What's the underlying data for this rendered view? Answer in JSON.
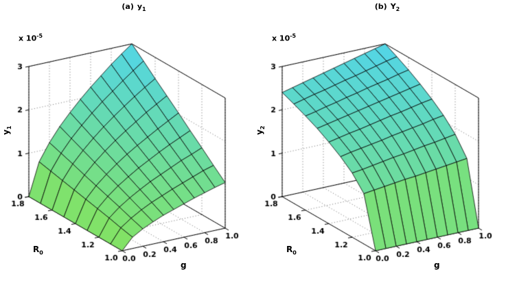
{
  "figure": {
    "background": "#ffffff"
  },
  "colors": {
    "background": "#ffffff",
    "axis": "#000000",
    "grid_line": "#666666",
    "mesh_line": "#000000",
    "text": "#000000",
    "surface_low_rgb": [
      132,
      227,
      95
    ],
    "surface_high_rgb": [
      82,
      213,
      232
    ]
  },
  "chart_data": [
    {
      "type": "surface",
      "view": "3d axonometric, MATLAB default az -37.5 el 30",
      "grid_on": true,
      "title": {
        "prefix": "(a)",
        "base": "y",
        "sub": "1"
      },
      "xlabel": "g",
      "ylabel": {
        "base": "R",
        "sub": "0"
      },
      "zlabel": {
        "base": "y",
        "sub": "1"
      },
      "z_scale": {
        "mantissa": "x 10",
        "exponent": "-5"
      },
      "x": {
        "min": 0.0,
        "max": 1.0,
        "ticks": [
          "0.0",
          "0.2",
          "0.4",
          "0.6",
          "0.8",
          "1.0"
        ]
      },
      "y": {
        "min": 1.0,
        "max": 1.8,
        "ticks": [
          "1.0",
          "1.2",
          "1.4",
          "1.6",
          "1.8"
        ]
      },
      "z": {
        "min": 0,
        "max": 3,
        "unit": "1e-5",
        "ticks": [
          "0",
          "1",
          "2",
          "3"
        ]
      },
      "surface_grid": {
        "g_values": [
          0.0,
          0.1,
          0.2,
          0.3,
          0.4,
          0.5,
          0.6,
          0.7,
          0.8,
          0.9,
          1.0
        ],
        "R0_values": [
          1.0,
          1.1,
          1.2,
          1.3,
          1.4,
          1.5,
          1.6,
          1.7,
          1.8
        ],
        "z_values": [
          [
            0,
            0.26,
            0.4,
            0.51,
            0.61,
            0.69,
            0.77,
            0.85,
            0.92,
            0.99,
            1.05
          ],
          [
            0,
            0.32,
            0.49,
            0.63,
            0.75,
            0.85,
            0.95,
            1.04,
            1.13,
            1.22,
            1.29
          ],
          [
            0,
            0.39,
            0.59,
            0.75,
            0.89,
            1.02,
            1.13,
            1.24,
            1.35,
            1.44,
            1.54
          ],
          [
            0,
            0.45,
            0.68,
            0.87,
            1.03,
            1.18,
            1.31,
            1.44,
            1.56,
            1.67,
            1.78
          ],
          [
            0,
            0.51,
            0.77,
            0.98,
            1.17,
            1.34,
            1.49,
            1.63,
            1.77,
            1.9,
            2.03
          ],
          [
            0,
            0.57,
            0.86,
            1.1,
            1.31,
            1.5,
            1.67,
            1.83,
            1.99,
            2.13,
            2.27
          ],
          [
            0,
            0.63,
            0.96,
            1.22,
            1.45,
            1.66,
            1.85,
            2.03,
            2.2,
            2.36,
            2.51
          ],
          [
            0,
            0.69,
            1.05,
            1.34,
            1.59,
            1.82,
            2.03,
            2.22,
            2.41,
            2.59,
            2.76
          ],
          [
            0,
            0.75,
            1.14,
            1.46,
            1.73,
            1.98,
            2.21,
            2.42,
            2.63,
            2.82,
            3.0
          ]
        ]
      }
    },
    {
      "type": "surface",
      "view": "3d axonometric, MATLAB default az -37.5 el 30",
      "grid_on": true,
      "title": {
        "prefix": "(b)",
        "base": "Y",
        "sub": "2"
      },
      "xlabel": "g",
      "ylabel": {
        "base": "R",
        "sub": "0"
      },
      "zlabel": {
        "base": "y",
        "sub": "2"
      },
      "z_scale": {
        "mantissa": "x 10",
        "exponent": "-5"
      },
      "x": {
        "min": 0.0,
        "max": 1.0,
        "ticks": [
          "0.0",
          "0.2",
          "0.4",
          "0.6",
          "0.8",
          "1.0"
        ]
      },
      "y": {
        "min": 1.0,
        "max": 1.8,
        "ticks": [
          "1.0",
          "1.2",
          "1.4",
          "1.6",
          "1.8"
        ]
      },
      "z": {
        "min": 0,
        "max": 3,
        "unit": "1e-5",
        "ticks": [
          "0",
          "1",
          "2",
          "3"
        ]
      },
      "surface_grid": {
        "g_values": [
          0.0,
          0.1,
          0.2,
          0.3,
          0.4,
          0.5,
          0.6,
          0.7,
          0.8,
          0.9,
          1.0
        ],
        "R0_values": [
          1.0,
          1.1,
          1.2,
          1.3,
          1.4,
          1.5,
          1.6,
          1.7,
          1.8
        ],
        "z_values": [
          [
            0,
            0,
            0,
            0,
            0,
            0,
            0,
            0,
            0,
            0,
            0
          ],
          [
            1.16,
            1.19,
            1.22,
            1.25,
            1.28,
            1.3,
            1.33,
            1.36,
            1.39,
            1.42,
            1.45
          ],
          [
            1.48,
            1.51,
            1.55,
            1.59,
            1.63,
            1.66,
            1.7,
            1.74,
            1.77,
            1.81,
            1.85
          ],
          [
            1.7,
            1.75,
            1.79,
            1.83,
            1.87,
            1.92,
            1.96,
            2.0,
            2.04,
            2.09,
            2.13
          ],
          [
            1.88,
            1.93,
            1.98,
            2.02,
            2.07,
            2.12,
            2.17,
            2.21,
            2.26,
            2.31,
            2.35
          ],
          [
            2.04,
            2.09,
            2.14,
            2.19,
            2.24,
            2.29,
            2.34,
            2.39,
            2.44,
            2.49,
            2.54
          ],
          [
            2.17,
            2.22,
            2.28,
            2.33,
            2.39,
            2.44,
            2.5,
            2.55,
            2.6,
            2.66,
            2.71
          ],
          [
            2.29,
            2.35,
            2.41,
            2.46,
            2.52,
            2.58,
            2.63,
            2.69,
            2.75,
            2.81,
            2.86
          ],
          [
            2.4,
            2.46,
            2.52,
            2.58,
            2.64,
            2.7,
            2.76,
            2.82,
            2.88,
            2.94,
            3.0
          ]
        ]
      }
    }
  ]
}
